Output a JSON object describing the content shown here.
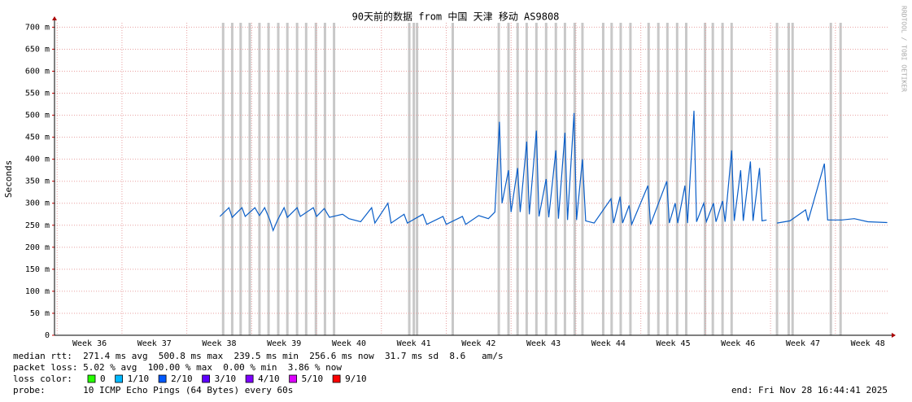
{
  "chart_data": {
    "type": "line",
    "title": "90天前的数据 from 中国 天津 移动 AS9808",
    "y_label": "Seconds",
    "side_text": "RRDTOOL / TOBI OETIKER",
    "xlim": [
      35.46,
      48.33
    ],
    "xticks": [
      {
        "value": 36,
        "label": "Week 36"
      },
      {
        "value": 37,
        "label": "Week 37"
      },
      {
        "value": 38,
        "label": "Week 38"
      },
      {
        "value": 39,
        "label": "Week 39"
      },
      {
        "value": 40,
        "label": "Week 40"
      },
      {
        "value": 41,
        "label": "Week 41"
      },
      {
        "value": 42,
        "label": "Week 42"
      },
      {
        "value": 43,
        "label": "Week 43"
      },
      {
        "value": 44,
        "label": "Week 44"
      },
      {
        "value": 45,
        "label": "Week 45"
      },
      {
        "value": 46,
        "label": "Week 46"
      },
      {
        "value": 47,
        "label": "Week 47"
      },
      {
        "value": 48,
        "label": "Week 48"
      }
    ],
    "ylim": [
      0,
      0.71
    ],
    "yticks": [
      0,
      {
        "value": 0.05,
        "label": "50 m"
      },
      {
        "value": 0.1,
        "label": "100 m"
      },
      {
        "value": 0.15,
        "label": "150 m"
      },
      {
        "value": 0.2,
        "label": "200 m"
      },
      {
        "value": 0.25,
        "label": "250 m"
      },
      {
        "value": 0.3,
        "label": "300 m"
      },
      {
        "value": 0.35,
        "label": "350 m"
      },
      {
        "value": 0.4,
        "label": "400 m"
      },
      {
        "value": 0.45,
        "label": "450 m"
      },
      {
        "value": 0.5,
        "label": "500 m"
      },
      {
        "value": 0.55,
        "label": "550 m"
      },
      {
        "value": 0.6,
        "label": "600 m"
      },
      {
        "value": 0.65,
        "label": "650 m"
      },
      {
        "value": 0.7,
        "label": "700 m"
      }
    ],
    "grid": true,
    "loss_color": "#c8c8c8",
    "loss_x": [
      38.06,
      38.2,
      38.33,
      38.47,
      38.62,
      38.76,
      38.91,
      39.05,
      39.2,
      39.34,
      39.49,
      39.63,
      39.77,
      40.93,
      41.0,
      41.05,
      41.6,
      42.31,
      42.46,
      42.6,
      42.74,
      42.89,
      43.04,
      43.19,
      43.33,
      43.48,
      43.6,
      43.92,
      44.05,
      44.19,
      44.34,
      44.62,
      44.77,
      44.91,
      45.06,
      45.2,
      45.49,
      45.61,
      45.76,
      45.9,
      46.6,
      46.78,
      46.84,
      47.43,
      47.58
    ],
    "series": [
      {
        "color": "#0a5ec8",
        "x": [
          38.01,
          38.15,
          38.2,
          38.35,
          38.4,
          38.55,
          38.62,
          38.7,
          38.78,
          38.83,
          38.9,
          39.0,
          39.05,
          39.2,
          39.25,
          39.45,
          39.5,
          39.62,
          39.7,
          39.9,
          40.0,
          40.18,
          40.35,
          40.4,
          40.6,
          40.65,
          40.85,
          40.9,
          41.14,
          41.2,
          41.45,
          41.5,
          41.75,
          41.8,
          42.0,
          42.15,
          42.25,
          42.32,
          42.36,
          42.46,
          42.5,
          42.6,
          42.64,
          42.74,
          42.78,
          42.89,
          42.93,
          43.04,
          43.08,
          43.19,
          43.23,
          43.33,
          43.37,
          43.47,
          43.51,
          43.6,
          43.65,
          43.78,
          44.04,
          44.08,
          44.18,
          44.22,
          44.32,
          44.36,
          44.61,
          44.65,
          44.9,
          44.94,
          45.03,
          45.07,
          45.18,
          45.22,
          45.32,
          45.36,
          45.47,
          45.51,
          45.62,
          45.66,
          45.76,
          45.8,
          45.9,
          45.94,
          46.04,
          46.08,
          46.19,
          46.23,
          46.33,
          46.37,
          46.44,
          46.52,
          46.6,
          46.8,
          47.04,
          47.08,
          47.33,
          47.38,
          47.6,
          47.79,
          48.0,
          48.3
        ],
        "values": [
          0.27,
          0.29,
          0.268,
          0.29,
          0.27,
          0.29,
          0.272,
          0.29,
          0.262,
          0.238,
          0.262,
          0.29,
          0.268,
          0.29,
          0.27,
          0.29,
          0.27,
          0.288,
          0.268,
          0.275,
          0.265,
          0.258,
          0.29,
          0.255,
          0.3,
          0.255,
          0.275,
          0.255,
          0.275,
          0.252,
          0.27,
          0.252,
          0.27,
          0.252,
          0.272,
          0.265,
          0.28,
          0.485,
          0.3,
          0.375,
          0.28,
          0.38,
          0.28,
          0.44,
          0.275,
          0.465,
          0.27,
          0.355,
          0.268,
          0.42,
          0.265,
          0.46,
          0.262,
          0.505,
          0.262,
          0.4,
          0.26,
          0.255,
          0.31,
          0.255,
          0.315,
          0.255,
          0.295,
          0.252,
          0.34,
          0.252,
          0.35,
          0.255,
          0.3,
          0.255,
          0.34,
          0.255,
          0.51,
          0.258,
          0.3,
          0.258,
          0.3,
          0.258,
          0.305,
          0.258,
          0.42,
          0.26,
          0.375,
          0.26,
          0.395,
          0.26,
          0.38,
          0.26,
          0.262,
          null,
          0.255,
          0.26,
          0.285,
          0.26,
          0.39,
          0.262,
          0.262,
          0.265,
          0.258,
          0.256
        ]
      }
    ],
    "stats": [
      "median rtt:  271.4 ms avg  500.8 ms max  239.5 ms min  256.6 ms now  31.7 ms sd  8.6   am/s",
      "packet loss: 5.02 % avg  100.00 % max  0.00 % min  3.86 % now"
    ],
    "loss_legend_title": "loss color:",
    "loss_legend": [
      {
        "name": "0",
        "color": "#26ff00"
      },
      {
        "name": "1/10",
        "color": "#00b8ff"
      },
      {
        "name": "2/10",
        "color": "#0059ff"
      },
      {
        "name": "3/10",
        "color": "#5e00ff"
      },
      {
        "name": "4/10",
        "color": "#7e00ff"
      },
      {
        "name": "5/10",
        "color": "#dd00ff"
      },
      {
        "name": "9/10",
        "color": "#ff0000"
      }
    ],
    "probe": "probe:       10 ICMP Echo Pings (64 Bytes) every 60s",
    "end": "end: Fri Nov 28 16:44:41 2025"
  }
}
